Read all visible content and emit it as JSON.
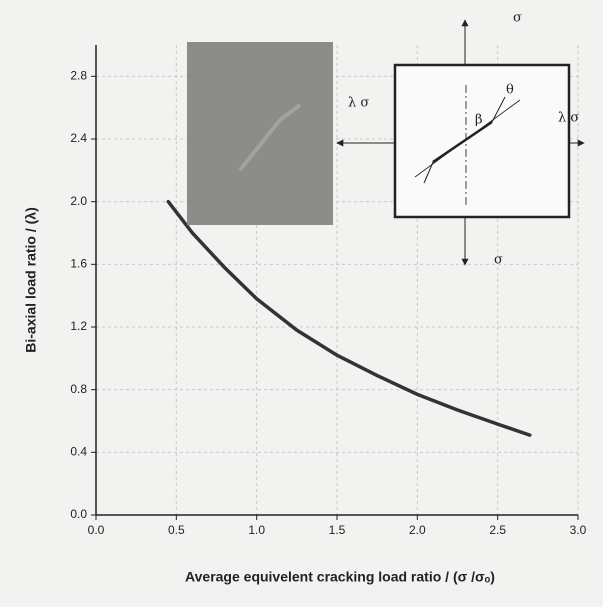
{
  "chart_data": {
    "type": "line",
    "x_label": "Average equivelent  cracking load ratio / (σ /σₒ)",
    "y_label": "Bi-axial load ratio / (λ)",
    "annotations": [
      "σ",
      "σ",
      "λ σ",
      "λ σ",
      "θ",
      "β"
    ],
    "series": [
      {
        "color": "#333333",
        "x": [
          0.45,
          0.6,
          0.8,
          1.0,
          1.25,
          1.5,
          1.75,
          2.0,
          2.25,
          2.5,
          2.7
        ],
        "values": [
          2.0,
          1.8,
          1.58,
          1.38,
          1.18,
          1.02,
          0.89,
          0.77,
          0.67,
          0.58,
          0.51
        ]
      }
    ],
    "xlim": [
      0,
      3
    ],
    "ylim": [
      0,
      3
    ],
    "xticks": [
      {
        "value": 0,
        "label": "0.0"
      },
      0.5,
      {
        "value": 1,
        "label": "1.0"
      },
      1.5,
      {
        "value": 2,
        "label": "2.0"
      },
      2.5,
      {
        "value": 3,
        "label": "3.0"
      }
    ],
    "yticks": [
      {
        "value": 0,
        "label": "0.0"
      },
      0.4,
      0.8,
      1.2,
      1.6,
      {
        "value": 2,
        "label": "2.0"
      },
      2.4,
      2.8
    ],
    "grid": true
  }
}
